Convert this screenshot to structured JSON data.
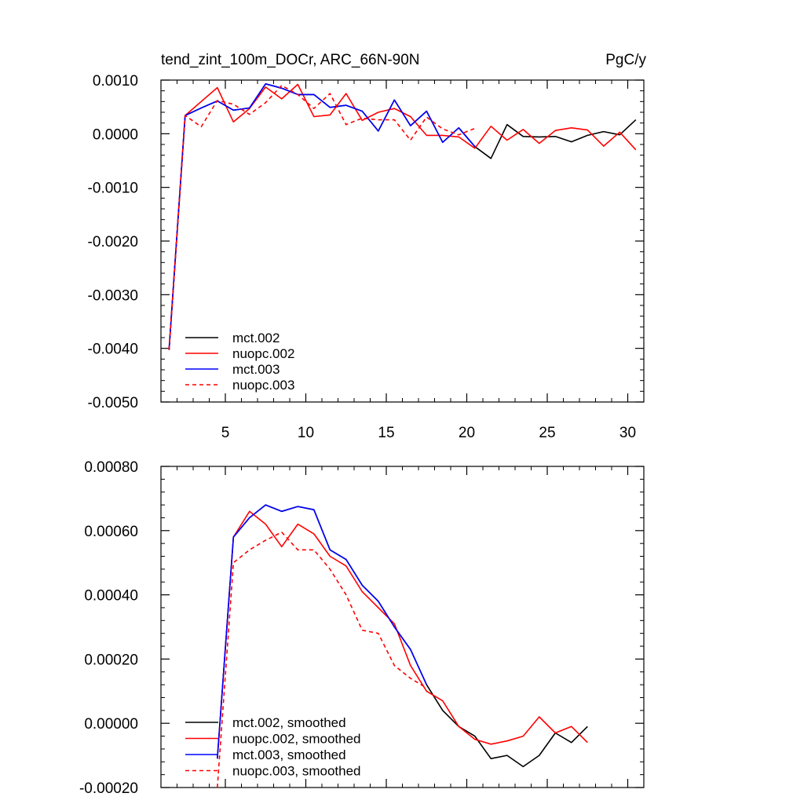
{
  "chart_data": [
    {
      "type": "line",
      "title": "tend_zint_100m_DOCr, ARC_66N-90N",
      "units": "PgC/y",
      "xlim": [
        1,
        31
      ],
      "ylim": [
        -0.005,
        0.001
      ],
      "xticks": [
        5,
        10,
        15,
        20,
        25,
        30
      ],
      "xtick_labels": [
        "5",
        "10",
        "15",
        "20",
        "25",
        "30"
      ],
      "yticks": [
        0.001,
        0.0,
        -0.001,
        -0.002,
        -0.003,
        -0.004,
        -0.005
      ],
      "ytick_labels": [
        "0.0010",
        "0.0000",
        "-0.0010",
        "-0.0020",
        "-0.0030",
        "-0.0040",
        "-0.0050"
      ],
      "legend_position": "bottom-left",
      "series": [
        {
          "name": "mct.002",
          "color": "#000000",
          "dash": "solid",
          "x": [
            1.5,
            2.5,
            3.5,
            4.5,
            5.5,
            6.5,
            7.5,
            8.5,
            9.5,
            10.5,
            11.5,
            12.5,
            13.5,
            14.5,
            15.5,
            16.5,
            17.5,
            18.5,
            19.5,
            20.5,
            21.5,
            22.5,
            23.5,
            24.5,
            25.5,
            26.5,
            27.5,
            28.5,
            29.5,
            30.5
          ],
          "y": [
            -0.00403,
            0.00034,
            0.00048,
            0.00061,
            0.00044,
            0.00048,
            0.00093,
            0.00085,
            0.00073,
            0.00073,
            0.00049,
            0.00053,
            0.00042,
            5e-05,
            0.00063,
            0.00015,
            0.00042,
            -0.00016,
            0.00011,
            -0.00024,
            -0.00046,
            0.00017,
            -5e-05,
            -6e-05,
            -5e-05,
            -0.00015,
            -3e-05,
            4e-05,
            -2e-05,
            0.00026
          ]
        },
        {
          "name": "nuopc.002",
          "color": "#ff0000",
          "dash": "solid",
          "x": [
            1.5,
            2.5,
            3.5,
            4.5,
            5.5,
            6.5,
            7.5,
            8.5,
            9.5,
            10.5,
            11.5,
            12.5,
            13.5,
            14.5,
            15.5,
            16.5,
            17.5,
            18.5,
            19.5,
            20.5,
            21.5,
            22.5,
            23.5,
            24.5,
            25.5,
            26.5,
            27.5,
            28.5,
            29.5,
            30.5
          ],
          "y": [
            -0.00403,
            0.00034,
            0.0006,
            0.00086,
            0.00022,
            0.00047,
            0.00087,
            0.00065,
            0.00092,
            0.00032,
            0.00035,
            0.00075,
            0.00025,
            0.0004,
            0.00047,
            0.00032,
            -3e-05,
            -3e-05,
            -6e-05,
            -0.00027,
            0.00014,
            -0.00012,
            8e-05,
            -0.00018,
            6e-05,
            0.00011,
            7e-05,
            -0.00023,
            3e-05,
            -0.0003
          ]
        },
        {
          "name": "mct.003",
          "color": "#0000ff",
          "dash": "solid",
          "x": [
            1.5,
            2.5,
            3.5,
            4.5,
            5.5,
            6.5,
            7.5,
            8.5,
            9.5,
            10.5,
            11.5,
            12.5,
            13.5,
            14.5,
            15.5,
            16.5,
            17.5,
            18.5,
            19.5,
            20.5
          ],
          "y": [
            -0.00403,
            0.00034,
            0.00048,
            0.00061,
            0.00044,
            0.00048,
            0.00093,
            0.00085,
            0.00073,
            0.00073,
            0.00049,
            0.00053,
            0.00042,
            5e-05,
            0.00063,
            0.00015,
            0.00042,
            -0.00016,
            0.00011,
            -0.00024
          ]
        },
        {
          "name": "nuopc.003",
          "color": "#ff0000",
          "dash": "dashed",
          "x": [
            1.5,
            2.5,
            3.5,
            4.5,
            5.5,
            6.5,
            7.5,
            8.5,
            9.5,
            10.5,
            11.5,
            12.5,
            13.5,
            14.5,
            15.5,
            16.5,
            17.5,
            18.5,
            19.5,
            20.5
          ],
          "y": [
            -0.00403,
            0.00034,
            0.00013,
            0.00062,
            0.00055,
            0.00036,
            0.00058,
            0.0009,
            0.00073,
            0.00047,
            0.00075,
            0.00017,
            0.00029,
            0.00026,
            0.00026,
            -0.00012,
            0.00031,
            9e-05,
            -2e-05,
            0.0001
          ]
        }
      ]
    },
    {
      "type": "line",
      "title": "",
      "units": "",
      "xlim": [
        1,
        31
      ],
      "ylim": [
        -0.0002,
        0.0008
      ],
      "xticks": [
        5,
        10,
        15,
        20,
        25,
        30
      ],
      "xtick_labels": [],
      "yticks": [
        0.0008,
        0.0006,
        0.0004,
        0.0002,
        0.0,
        -0.0002
      ],
      "ytick_labels": [
        "0.00080",
        "0.00060",
        "0.00040",
        "0.00020",
        "0.00000",
        "-0.00020"
      ],
      "legend_position": "bottom-left",
      "series": [
        {
          "name": "mct.002, smoothed",
          "color": "#000000",
          "dash": "solid",
          "x": [
            4.5,
            5.5,
            6.5,
            7.5,
            8.5,
            9.5,
            10.5,
            11.5,
            12.5,
            13.5,
            14.5,
            15.5,
            16.5,
            17.5,
            18.5,
            19.5,
            20.5,
            21.5,
            22.5,
            23.5,
            24.5,
            25.5,
            26.5,
            27.5
          ],
          "y": [
            -0.00011,
            0.00058,
            0.00064,
            0.00068,
            0.00066,
            0.000675,
            0.000665,
            0.00054,
            0.00051,
            0.00043,
            0.00038,
            0.0003,
            0.00023,
            0.00012,
            4e-05,
            -1e-05,
            -4e-05,
            -0.00011,
            -0.0001,
            -0.000135,
            -0.0001,
            -3e-05,
            -6e-05,
            -1e-05
          ]
        },
        {
          "name": "nuopc.002, smoothed",
          "color": "#ff0000",
          "dash": "solid",
          "x": [
            4.5,
            5.5,
            6.5,
            7.5,
            8.5,
            9.5,
            10.5,
            11.5,
            12.5,
            13.5,
            14.5,
            15.5,
            16.5,
            17.5,
            18.5,
            19.5,
            20.5,
            21.5,
            22.5,
            23.5,
            24.5,
            25.5,
            26.5,
            27.5
          ],
          "y": [
            -0.00011,
            0.00058,
            0.00066,
            0.00062,
            0.00055,
            0.00062,
            0.00059,
            0.00052,
            0.00049,
            0.00041,
            0.00036,
            0.00031,
            0.00018,
            0.0001,
            7e-05,
            -1e-05,
            -5e-05,
            -6.5e-05,
            -5.5e-05,
            -4e-05,
            2e-05,
            -3e-05,
            -1e-05,
            -6e-05
          ]
        },
        {
          "name": "mct.003, smoothed",
          "color": "#0000ff",
          "dash": "solid",
          "x": [
            4.5,
            5.5,
            6.5,
            7.5,
            8.5,
            9.5,
            10.5,
            11.5,
            12.5,
            13.5,
            14.5,
            15.5,
            16.5,
            17.5
          ],
          "y": [
            -0.00011,
            0.00058,
            0.00064,
            0.00068,
            0.00066,
            0.000675,
            0.000665,
            0.00054,
            0.00051,
            0.00043,
            0.00038,
            0.0003,
            0.00023,
            0.00012
          ]
        },
        {
          "name": "nuopc.003, smoothed",
          "color": "#ff0000",
          "dash": "dashed",
          "x": [
            4.5,
            5.5,
            6.5,
            7.5,
            8.5,
            9.5,
            10.5,
            11.5,
            12.5,
            13.5,
            14.5,
            15.5,
            16.5,
            17.5
          ],
          "y": [
            -0.0002,
            0.0005,
            0.00054,
            0.00057,
            0.000595,
            0.00054,
            0.00054,
            0.00048,
            0.0004,
            0.00029,
            0.00028,
            0.00018,
            0.00014,
            0.00011
          ]
        }
      ]
    }
  ]
}
